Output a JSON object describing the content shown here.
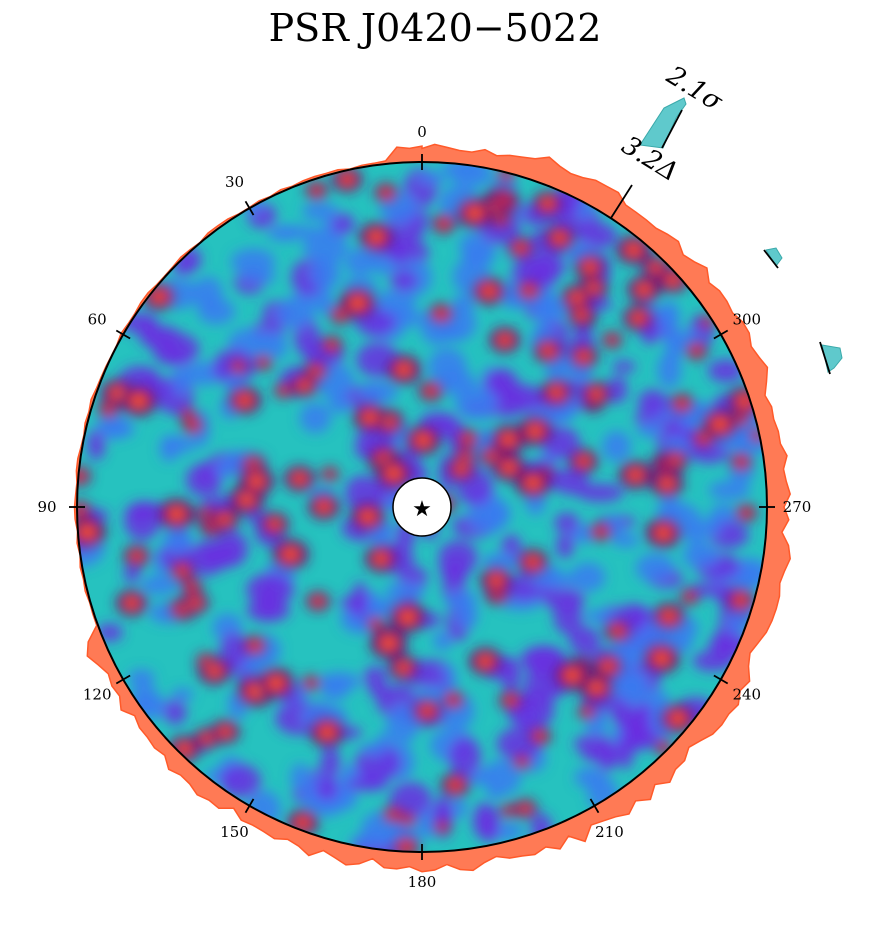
{
  "chart_data": {
    "type": "heatmap",
    "title": "PSR J0420−5022",
    "angle_ticks": [
      "0",
      "30",
      "60",
      "90",
      "120",
      "150",
      "180",
      "210",
      "240",
      "270",
      "300"
    ],
    "center_marker": "★",
    "annotations": [
      {
        "text": "2.1σ",
        "angle": 327
      },
      {
        "text": "3.2Δ",
        "angle": 328
      }
    ],
    "colormap": [
      "#22c8c0",
      "#3a7bf0",
      "#6a2ee0",
      "#5a1a7a",
      "#b01a4a",
      "#ff2a2a",
      "#ff8a30"
    ],
    "outer_profile_color": "#ff7a55",
    "secondary_profile_color": "#5fc9cc"
  }
}
